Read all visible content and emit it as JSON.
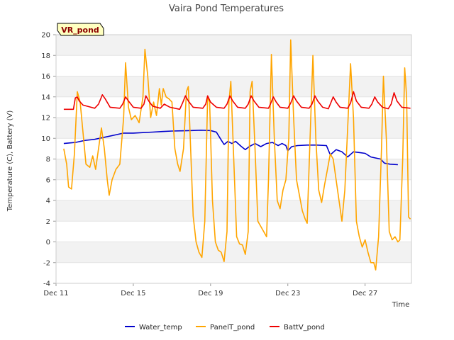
{
  "chart_data": {
    "type": "line",
    "title": "Vaira Pond Temperatures",
    "tag": "VR_pond",
    "xlabel": "Time",
    "ylabel": "Temperature (C), Battery (V)",
    "ylim": [
      -4,
      20
    ],
    "yticks": [
      -4,
      -2,
      0,
      2,
      4,
      6,
      8,
      10,
      12,
      14,
      16,
      18,
      20
    ],
    "xlim": [
      11,
      29.4
    ],
    "xticks": [
      {
        "value": 11,
        "label": "Dec 11"
      },
      {
        "value": 15,
        "label": "Dec 15"
      },
      {
        "value": 19,
        "label": "Dec 19"
      },
      {
        "value": 23,
        "label": "Dec 23"
      },
      {
        "value": 27,
        "label": "Dec 27"
      }
    ],
    "grid": true,
    "legend": "bottom",
    "series": [
      {
        "name": "Water_temp",
        "color": "#0000cc",
        "points": [
          [
            11.4,
            9.5
          ],
          [
            12.0,
            9.6
          ],
          [
            12.5,
            9.8
          ],
          [
            13.0,
            9.9
          ],
          [
            13.5,
            10.1
          ],
          [
            14.0,
            10.3
          ],
          [
            14.5,
            10.5
          ],
          [
            15.0,
            10.5
          ],
          [
            15.5,
            10.55
          ],
          [
            16.0,
            10.6
          ],
          [
            16.5,
            10.65
          ],
          [
            17.0,
            10.7
          ],
          [
            17.5,
            10.72
          ],
          [
            18.0,
            10.75
          ],
          [
            18.5,
            10.78
          ],
          [
            19.0,
            10.75
          ],
          [
            19.3,
            10.6
          ],
          [
            19.5,
            10.0
          ],
          [
            19.7,
            9.4
          ],
          [
            19.9,
            9.7
          ],
          [
            20.1,
            9.5
          ],
          [
            20.3,
            9.7
          ],
          [
            20.6,
            9.2
          ],
          [
            20.8,
            8.9
          ],
          [
            21.0,
            9.2
          ],
          [
            21.3,
            9.5
          ],
          [
            21.6,
            9.2
          ],
          [
            21.9,
            9.5
          ],
          [
            22.2,
            9.6
          ],
          [
            22.5,
            9.3
          ],
          [
            22.7,
            9.5
          ],
          [
            22.9,
            9.3
          ],
          [
            23.0,
            8.8
          ],
          [
            23.2,
            9.2
          ],
          [
            23.5,
            9.3
          ],
          [
            24.0,
            9.35
          ],
          [
            24.5,
            9.35
          ],
          [
            25.0,
            9.3
          ],
          [
            25.2,
            8.4
          ],
          [
            25.5,
            8.9
          ],
          [
            25.8,
            8.7
          ],
          [
            26.1,
            8.2
          ],
          [
            26.4,
            8.7
          ],
          [
            27.0,
            8.55
          ],
          [
            27.3,
            8.2
          ],
          [
            27.8,
            8.0
          ],
          [
            28.0,
            7.6
          ],
          [
            28.3,
            7.5
          ],
          [
            28.7,
            7.45
          ]
        ]
      },
      {
        "name": "PanelT_pond",
        "color": "#ffa500",
        "points": [
          [
            11.4,
            9.0
          ],
          [
            11.55,
            7.5
          ],
          [
            11.65,
            5.3
          ],
          [
            11.8,
            5.1
          ],
          [
            11.95,
            8.5
          ],
          [
            12.1,
            14.5
          ],
          [
            12.25,
            13.5
          ],
          [
            12.4,
            10.5
          ],
          [
            12.55,
            7.5
          ],
          [
            12.75,
            7.2
          ],
          [
            12.9,
            8.3
          ],
          [
            13.05,
            7.0
          ],
          [
            13.2,
            9.0
          ],
          [
            13.35,
            11.0
          ],
          [
            13.5,
            9.0
          ],
          [
            13.65,
            6.0
          ],
          [
            13.75,
            4.5
          ],
          [
            13.9,
            6.0
          ],
          [
            14.1,
            7.0
          ],
          [
            14.3,
            7.5
          ],
          [
            14.5,
            12.0
          ],
          [
            14.6,
            17.3
          ],
          [
            14.75,
            13.0
          ],
          [
            14.9,
            11.8
          ],
          [
            15.1,
            12.2
          ],
          [
            15.3,
            11.5
          ],
          [
            15.5,
            14.0
          ],
          [
            15.6,
            18.6
          ],
          [
            15.75,
            16.0
          ],
          [
            15.9,
            12.0
          ],
          [
            16.05,
            13.5
          ],
          [
            16.2,
            12.2
          ],
          [
            16.35,
            14.8
          ],
          [
            16.45,
            13.2
          ],
          [
            16.55,
            14.8
          ],
          [
            16.7,
            14.0
          ],
          [
            16.85,
            13.8
          ],
          [
            17.0,
            13.5
          ],
          [
            17.15,
            9.0
          ],
          [
            17.3,
            7.5
          ],
          [
            17.42,
            6.8
          ],
          [
            17.6,
            9.0
          ],
          [
            17.75,
            14.5
          ],
          [
            17.85,
            15.0
          ],
          [
            17.95,
            10.0
          ],
          [
            18.1,
            2.5
          ],
          [
            18.25,
            0.0
          ],
          [
            18.4,
            -1.0
          ],
          [
            18.55,
            -1.5
          ],
          [
            18.7,
            2.0
          ],
          [
            18.85,
            14.0
          ],
          [
            18.95,
            13.5
          ],
          [
            19.1,
            4.0
          ],
          [
            19.25,
            0.0
          ],
          [
            19.4,
            -0.8
          ],
          [
            19.55,
            -1.0
          ],
          [
            19.7,
            -1.9
          ],
          [
            19.85,
            1.0
          ],
          [
            19.95,
            13.5
          ],
          [
            20.05,
            15.5
          ],
          [
            20.2,
            8.0
          ],
          [
            20.35,
            0.5
          ],
          [
            20.5,
            -0.2
          ],
          [
            20.65,
            -0.3
          ],
          [
            20.8,
            -1.2
          ],
          [
            20.95,
            1.0
          ],
          [
            21.05,
            14.5
          ],
          [
            21.15,
            15.5
          ],
          [
            21.3,
            9.0
          ],
          [
            21.45,
            2.0
          ],
          [
            21.6,
            1.5
          ],
          [
            21.75,
            1.0
          ],
          [
            21.9,
            0.5
          ],
          [
            22.0,
            6.0
          ],
          [
            22.15,
            18.1
          ],
          [
            22.3,
            10.0
          ],
          [
            22.45,
            4.0
          ],
          [
            22.6,
            3.2
          ],
          [
            22.75,
            5.0
          ],
          [
            22.9,
            6.0
          ],
          [
            23.05,
            10.0
          ],
          [
            23.15,
            19.5
          ],
          [
            23.3,
            12.0
          ],
          [
            23.45,
            6.0
          ],
          [
            23.6,
            4.5
          ],
          [
            23.75,
            3.0
          ],
          [
            23.9,
            2.2
          ],
          [
            24.0,
            1.8
          ],
          [
            24.15,
            10.0
          ],
          [
            24.3,
            18.0
          ],
          [
            24.45,
            10.0
          ],
          [
            24.6,
            5.0
          ],
          [
            24.75,
            3.8
          ],
          [
            24.9,
            5.5
          ],
          [
            25.05,
            7.0
          ],
          [
            25.2,
            8.5
          ],
          [
            25.35,
            8.0
          ],
          [
            25.5,
            6.0
          ],
          [
            25.65,
            4.0
          ],
          [
            25.8,
            2.0
          ],
          [
            25.95,
            5.0
          ],
          [
            26.1,
            11.0
          ],
          [
            26.25,
            17.2
          ],
          [
            26.4,
            12.0
          ],
          [
            26.55,
            2.0
          ],
          [
            26.7,
            0.5
          ],
          [
            26.85,
            -0.5
          ],
          [
            27.0,
            0.2
          ],
          [
            27.15,
            -1.0
          ],
          [
            27.3,
            -2.0
          ],
          [
            27.45,
            -2.0
          ],
          [
            27.55,
            -2.7
          ],
          [
            27.7,
            0.5
          ],
          [
            27.85,
            9.0
          ],
          [
            27.95,
            16.0
          ],
          [
            28.1,
            10.0
          ],
          [
            28.25,
            1.0
          ],
          [
            28.4,
            0.2
          ],
          [
            28.55,
            0.5
          ],
          [
            28.7,
            0.0
          ],
          [
            28.8,
            0.2
          ],
          [
            28.95,
            8.0
          ],
          [
            29.05,
            16.8
          ],
          [
            29.15,
            14.0
          ],
          [
            29.25,
            2.4
          ],
          [
            29.35,
            2.2
          ]
        ]
      },
      {
        "name": "BattV_pond",
        "color": "#ee0000",
        "points": [
          [
            11.4,
            12.8
          ],
          [
            11.9,
            12.8
          ],
          [
            12.0,
            13.9
          ],
          [
            12.1,
            14.0
          ],
          [
            12.2,
            13.6
          ],
          [
            12.4,
            13.2
          ],
          [
            13.0,
            12.9
          ],
          [
            13.2,
            13.3
          ],
          [
            13.4,
            14.2
          ],
          [
            13.55,
            13.8
          ],
          [
            13.8,
            13.0
          ],
          [
            14.3,
            12.9
          ],
          [
            14.45,
            13.3
          ],
          [
            14.6,
            14.0
          ],
          [
            14.75,
            13.6
          ],
          [
            15.0,
            13.0
          ],
          [
            15.4,
            12.9
          ],
          [
            15.55,
            13.3
          ],
          [
            15.65,
            14.1
          ],
          [
            15.8,
            13.6
          ],
          [
            16.0,
            13.1
          ],
          [
            16.4,
            12.9
          ],
          [
            16.6,
            13.3
          ],
          [
            16.9,
            13.0
          ],
          [
            17.4,
            12.8
          ],
          [
            17.55,
            13.4
          ],
          [
            17.7,
            14.1
          ],
          [
            17.85,
            13.6
          ],
          [
            18.1,
            13.0
          ],
          [
            18.6,
            12.9
          ],
          [
            18.75,
            13.3
          ],
          [
            18.85,
            14.1
          ],
          [
            19.0,
            13.5
          ],
          [
            19.3,
            13.0
          ],
          [
            19.7,
            12.9
          ],
          [
            19.85,
            13.3
          ],
          [
            20.0,
            14.1
          ],
          [
            20.15,
            13.6
          ],
          [
            20.4,
            13.0
          ],
          [
            20.8,
            12.9
          ],
          [
            20.95,
            13.3
          ],
          [
            21.1,
            14.1
          ],
          [
            21.25,
            13.6
          ],
          [
            21.5,
            13.0
          ],
          [
            22.0,
            12.9
          ],
          [
            22.1,
            13.3
          ],
          [
            22.25,
            14.0
          ],
          [
            22.4,
            13.5
          ],
          [
            22.6,
            13.0
          ],
          [
            23.0,
            12.9
          ],
          [
            23.15,
            13.4
          ],
          [
            23.3,
            14.1
          ],
          [
            23.45,
            13.6
          ],
          [
            23.7,
            13.0
          ],
          [
            24.1,
            12.9
          ],
          [
            24.25,
            13.3
          ],
          [
            24.4,
            14.1
          ],
          [
            24.55,
            13.6
          ],
          [
            24.8,
            13.0
          ],
          [
            25.1,
            12.85
          ],
          [
            25.2,
            13.3
          ],
          [
            25.35,
            14.0
          ],
          [
            25.5,
            13.5
          ],
          [
            25.7,
            13.0
          ],
          [
            26.1,
            12.9
          ],
          [
            26.25,
            13.4
          ],
          [
            26.4,
            14.5
          ],
          [
            26.55,
            13.6
          ],
          [
            26.8,
            13.0
          ],
          [
            27.2,
            12.9
          ],
          [
            27.35,
            13.3
          ],
          [
            27.5,
            14.0
          ],
          [
            27.65,
            13.5
          ],
          [
            27.9,
            13.0
          ],
          [
            28.2,
            12.85
          ],
          [
            28.35,
            13.3
          ],
          [
            28.5,
            14.4
          ],
          [
            28.65,
            13.6
          ],
          [
            28.9,
            13.0
          ],
          [
            29.35,
            12.9
          ]
        ]
      }
    ]
  }
}
